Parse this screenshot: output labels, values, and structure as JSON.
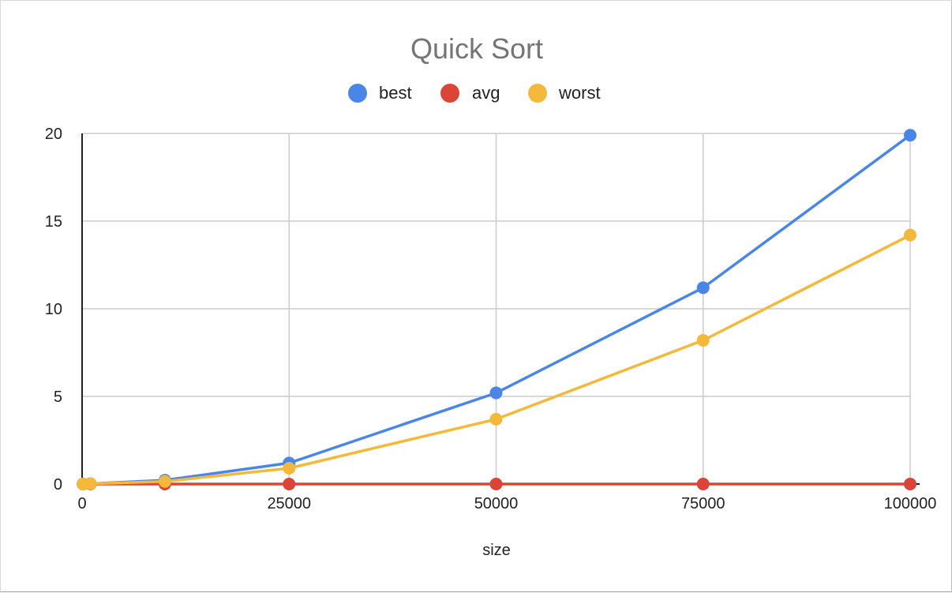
{
  "chart_data": {
    "type": "line",
    "title": "Quick Sort",
    "xlabel": "size",
    "ylabel": "",
    "xlim": [
      0,
      100000
    ],
    "ylim": [
      0,
      20
    ],
    "x_ticks": [
      "0",
      "25000",
      "50000",
      "75000",
      "100000"
    ],
    "y_ticks": [
      "0",
      "5",
      "10",
      "15",
      "20"
    ],
    "grid": true,
    "legend_position": "top",
    "x": [
      100,
      1000,
      10000,
      25000,
      50000,
      75000,
      100000
    ],
    "series": [
      {
        "name": "best",
        "color": "#4a86e8",
        "values": [
          0.0,
          0.02,
          0.22,
          1.2,
          5.2,
          11.2,
          19.9
        ]
      },
      {
        "name": "avg",
        "color": "#db4437",
        "values": [
          0.0,
          0.0,
          0.0,
          0.0,
          0.0,
          0.0,
          0.0
        ]
      },
      {
        "name": "worst",
        "color": "#f4b93a",
        "values": [
          0.0,
          0.02,
          0.15,
          0.9,
          3.7,
          8.2,
          14.2
        ]
      }
    ]
  }
}
